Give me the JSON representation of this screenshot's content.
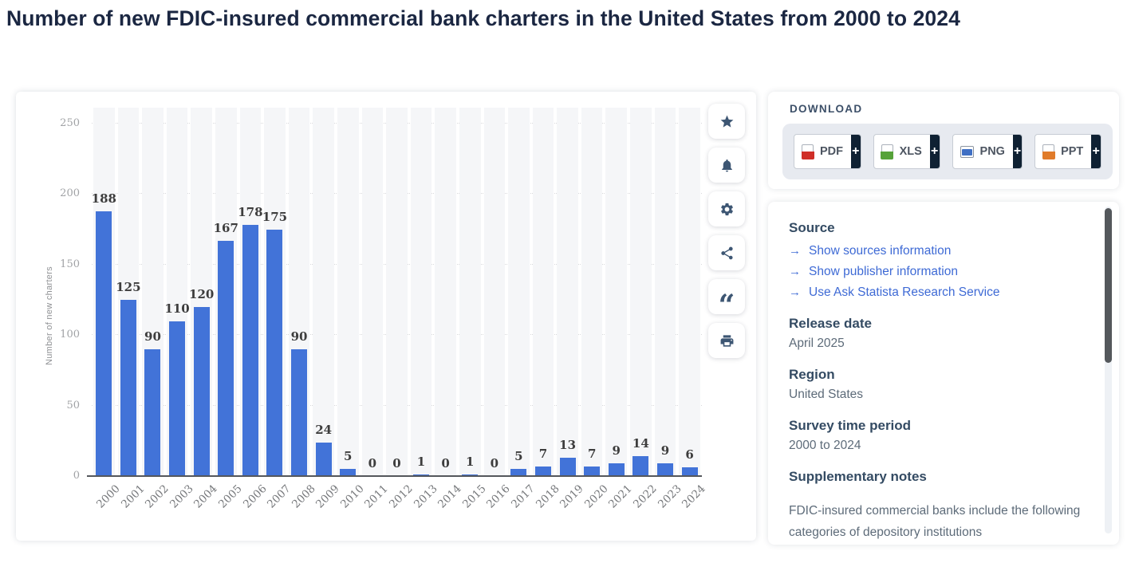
{
  "page": {
    "title": "Number of new FDIC-insured commercial bank charters in the United States from 2000 to 2024"
  },
  "toolbar": {
    "items": [
      {
        "name": "favorite",
        "icon": "star-icon"
      },
      {
        "name": "alerts",
        "icon": "bell-icon"
      },
      {
        "name": "settings",
        "icon": "gear-icon"
      },
      {
        "name": "share",
        "icon": "share-icon"
      },
      {
        "name": "cite",
        "icon": "quote-icon"
      },
      {
        "name": "print",
        "icon": "printer-icon"
      }
    ],
    "quote_glyph": "“"
  },
  "download": {
    "heading": "DOWNLOAD",
    "plus_label": "+",
    "formats": [
      {
        "label": "PDF",
        "color": "#cf2e27"
      },
      {
        "label": "XLS",
        "color": "#56a239"
      },
      {
        "label": "PNG",
        "color": "#3f6fc4"
      },
      {
        "label": "PPT",
        "color": "#e07b2a"
      }
    ]
  },
  "info": {
    "source_heading": "Source",
    "link_arrow": "→",
    "links": [
      {
        "label": "Show sources information"
      },
      {
        "label": "Show publisher information"
      },
      {
        "label": "Use Ask Statista Research Service"
      }
    ],
    "release_date_heading": "Release date",
    "release_date": "April 2025",
    "region_heading": "Region",
    "region": "United States",
    "survey_heading": "Survey time period",
    "survey": "2000 to 2024",
    "notes_heading": "Supplementary notes",
    "notes_text": "FDIC-insured commercial banks include the following categories of depository institutions"
  },
  "chart_data": {
    "type": "bar",
    "categories": [
      "2000",
      "2001",
      "2002",
      "2003",
      "2004",
      "2005",
      "2006",
      "2007",
      "2008",
      "2009",
      "2010",
      "2011",
      "2012",
      "2013",
      "2014",
      "2015",
      "2016",
      "2017",
      "2018",
      "2019",
      "2020",
      "2021",
      "2022",
      "2023",
      "2024"
    ],
    "values": [
      188,
      125,
      90,
      110,
      120,
      167,
      178,
      175,
      90,
      24,
      5,
      0,
      0,
      1,
      0,
      1,
      0,
      5,
      7,
      13,
      7,
      9,
      14,
      9,
      6
    ],
    "title": "",
    "xlabel": "",
    "ylabel": "Number of new charters",
    "ylim": [
      0,
      250
    ],
    "yticks": [
      0,
      50,
      100,
      150,
      200,
      250
    ],
    "bar_color": "#4273d8",
    "grid": "horizontal-dotted",
    "legend": "none"
  }
}
